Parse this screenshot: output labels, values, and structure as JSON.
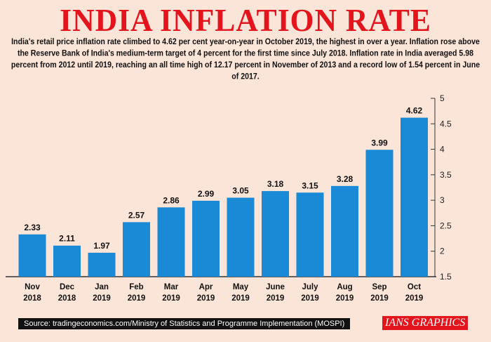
{
  "title": "INDIA INFLATION RATE",
  "description": "India's retail price inflation rate climbed to 4.62 per cent year-on-year in October 2019, the highest in over a year. Inflation rose above the Reserve Bank of India's medium-term target of 4 percent for the first time since July 2018. Inflation rate in India averaged 5.98 percent from 2012 until 2019, reaching an all time high of 12.17 percent in November of 2013 and a record low of 1.54 percent in June of 2017.",
  "source": "Source: tradingeconomics.com/Ministry of Statistics and Programme Implementation (MOSPI)",
  "brand": "IANS GRAPHICS",
  "colors": {
    "bar": "#1a8ad6",
    "title": "#e4141c",
    "background": "#fbe4d8"
  },
  "chart_data": {
    "type": "bar",
    "categories": [
      [
        "Nov",
        "2018"
      ],
      [
        "Dec",
        "2018"
      ],
      [
        "Jan",
        "2019"
      ],
      [
        "Feb",
        "2019"
      ],
      [
        "Mar",
        "2019"
      ],
      [
        "Apr",
        "2019"
      ],
      [
        "May",
        "2019"
      ],
      [
        "June",
        "2019"
      ],
      [
        "July",
        "2019"
      ],
      [
        "Aug",
        "2019"
      ],
      [
        "Sep",
        "2019"
      ],
      [
        "Oct",
        "2019"
      ]
    ],
    "values": [
      2.33,
      2.11,
      1.97,
      2.57,
      2.86,
      2.99,
      3.05,
      3.18,
      3.15,
      3.28,
      3.99,
      4.62
    ],
    "value_labels": [
      "2.33",
      "2.11",
      "1.97",
      "2.57",
      "2.86",
      "2.99",
      "3.05",
      "3.18",
      "3.15",
      "3.28",
      "3.99",
      "4.62"
    ],
    "ylim": [
      1.5,
      5
    ],
    "yticks": [
      "1.5",
      "2",
      "2.5",
      "3",
      "3.5",
      "4",
      "4.5",
      "5"
    ],
    "yaxis_position": "right",
    "grid": false
  }
}
